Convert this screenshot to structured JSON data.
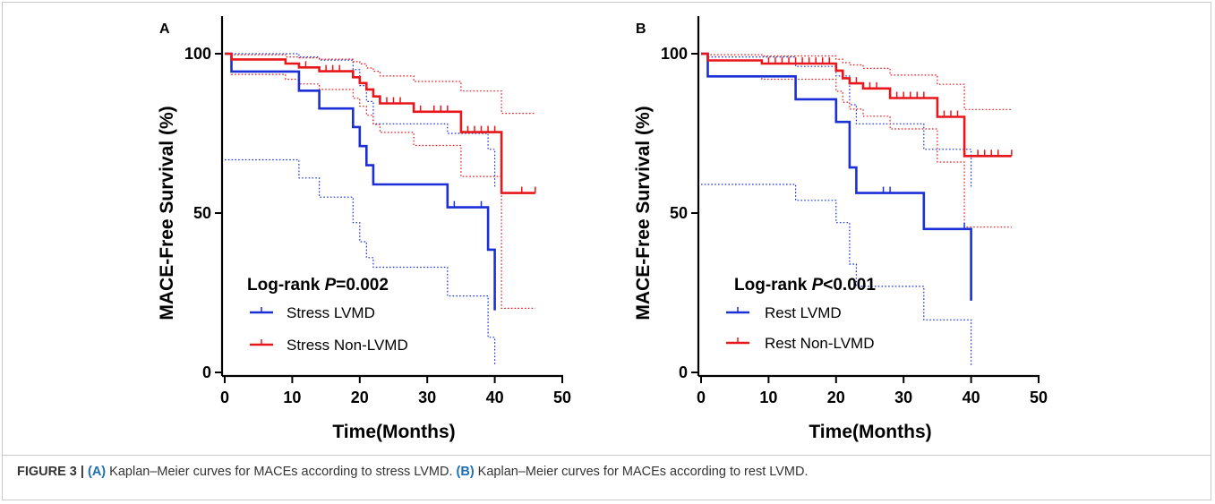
{
  "caption": {
    "prefix": "FIGURE 3 | ",
    "a_label": "(A)",
    "a_text": " Kaplan–Meier curves for MACEs according to stress LVMD. ",
    "b_label": "(B)",
    "b_text": " Kaplan–Meier curves for MACEs according to rest LVMD."
  },
  "colors": {
    "blue": "#1a2fd6",
    "red": "#e8161a",
    "axis": "#000000"
  },
  "chart_data": [
    {
      "type": "line",
      "panel": "A",
      "xlabel": "Time(Months)",
      "ylabel": "MACE-Free Survival (%)",
      "xlim": [
        0,
        50
      ],
      "ylim": [
        0,
        100
      ],
      "xticks": [
        0,
        10,
        20,
        30,
        40,
        50
      ],
      "yticks": [
        0,
        50,
        100
      ],
      "annotation": {
        "prefix": "Log-rank ",
        "p": "P",
        "rest": "=0.002"
      },
      "series": [
        {
          "name": "Stress LVMD",
          "color": "#1a2fd6",
          "steps": [
            [
              0,
              100
            ],
            [
              1,
              94.4
            ],
            [
              11,
              88.4
            ],
            [
              14,
              82.8
            ],
            [
              19,
              77
            ],
            [
              20,
              71
            ],
            [
              21,
              65
            ],
            [
              22,
              59
            ],
            [
              33,
              51.8
            ],
            [
              39,
              38.5
            ],
            [
              40,
              19.5
            ]
          ],
          "censors": [
            [
              34,
              51.8
            ],
            [
              38,
              51.8
            ]
          ],
          "ci_upper": [
            [
              0,
              100
            ],
            [
              1,
              100
            ],
            [
              11,
              99
            ],
            [
              14,
              98
            ],
            [
              19,
              95
            ],
            [
              20,
              90
            ],
            [
              21,
              85
            ],
            [
              22,
              78
            ],
            [
              33,
              75
            ],
            [
              39,
              70
            ],
            [
              40,
              58
            ]
          ],
          "ci_lower": [
            [
              0,
              66.7
            ],
            [
              11,
              61
            ],
            [
              14,
              55
            ],
            [
              19,
              47
            ],
            [
              20,
              41
            ],
            [
              21,
              36
            ],
            [
              22,
              33
            ],
            [
              33,
              24
            ],
            [
              39,
              11
            ],
            [
              40,
              2
            ]
          ]
        },
        {
          "name": "Stress Non-LVMD",
          "color": "#e8161a",
          "steps": [
            [
              0,
              100
            ],
            [
              1,
              98.2
            ],
            [
              9,
              96.9
            ],
            [
              11,
              95.7
            ],
            [
              14,
              94.5
            ],
            [
              19,
              92.6
            ],
            [
              20,
              90.8
            ],
            [
              21,
              88.8
            ],
            [
              22,
              86.6
            ],
            [
              23,
              84.4
            ],
            [
              28,
              81.8
            ],
            [
              35,
              75.4
            ],
            [
              41,
              56.3
            ],
            [
              46,
              56.3
            ]
          ],
          "censors": [
            [
              12,
              95.7
            ],
            [
              15,
              94.5
            ],
            [
              16,
              94.5
            ],
            [
              17,
              94.5
            ],
            [
              22,
              86.6
            ],
            [
              24,
              84.4
            ],
            [
              25,
              84.4
            ],
            [
              26,
              84.4
            ],
            [
              29,
              81.8
            ],
            [
              31,
              81.8
            ],
            [
              32,
              81.8
            ],
            [
              33,
              81.8
            ],
            [
              36,
              75.4
            ],
            [
              37,
              75.4
            ],
            [
              38,
              75.4
            ],
            [
              39,
              75.4
            ],
            [
              40,
              75.4
            ],
            [
              44,
              56.3
            ],
            [
              46,
              56.3
            ]
          ],
          "ci_upper": [
            [
              0,
              100
            ],
            [
              1,
              99.7
            ],
            [
              9,
              99
            ],
            [
              11,
              98.7
            ],
            [
              14,
              98.3
            ],
            [
              19,
              97.5
            ],
            [
              20,
              96.8
            ],
            [
              21,
              95.5
            ],
            [
              22,
              94.5
            ],
            [
              23,
              93
            ],
            [
              28,
              91.3
            ],
            [
              35,
              88.3
            ],
            [
              41,
              81.3
            ],
            [
              46,
              81.3
            ]
          ],
          "ci_lower": [
            [
              0,
              100
            ],
            [
              1,
              93.5
            ],
            [
              9,
              92
            ],
            [
              11,
              90.5
            ],
            [
              14,
              88.8
            ],
            [
              19,
              86
            ],
            [
              20,
              83.5
            ],
            [
              21,
              80.7
            ],
            [
              22,
              77.8
            ],
            [
              23,
              75.3
            ],
            [
              28,
              71.2
            ],
            [
              35,
              61.5
            ],
            [
              41,
              20.1
            ],
            [
              46,
              20.1
            ]
          ]
        }
      ]
    },
    {
      "type": "line",
      "panel": "B",
      "xlabel": "Time(Months)",
      "ylabel": "MACE-Free Survival (%)",
      "xlim": [
        0,
        50
      ],
      "ylim": [
        0,
        100
      ],
      "xticks": [
        0,
        10,
        20,
        30,
        40,
        50
      ],
      "yticks": [
        0,
        50,
        100
      ],
      "annotation": {
        "prefix": "Log-rank ",
        "p": "P",
        "rest": "<0.001"
      },
      "series": [
        {
          "name": "Rest LVMD",
          "color": "#1a2fd6",
          "steps": [
            [
              0,
              100
            ],
            [
              1,
              92.9
            ],
            [
              14,
              85.7
            ],
            [
              20,
              78.6
            ],
            [
              22,
              64.3
            ],
            [
              23,
              56.3
            ],
            [
              33,
              45
            ],
            [
              40,
              22.5
            ]
          ],
          "censors": [
            [
              27,
              56.3
            ],
            [
              28,
              56.3
            ],
            [
              39,
              45
            ]
          ],
          "ci_upper": [
            [
              0,
              100
            ],
            [
              1,
              99
            ],
            [
              14,
              96
            ],
            [
              20,
              93
            ],
            [
              22,
              84
            ],
            [
              23,
              78
            ],
            [
              33,
              70
            ],
            [
              40,
              58
            ]
          ],
          "ci_lower": [
            [
              0,
              59
            ],
            [
              14,
              54
            ],
            [
              20,
              47
            ],
            [
              22,
              34
            ],
            [
              23,
              27
            ],
            [
              33,
              16.5
            ],
            [
              40,
              2
            ]
          ]
        },
        {
          "name": "Rest Non-LVMD",
          "color": "#e8161a",
          "steps": [
            [
              0,
              100
            ],
            [
              1,
              97.9
            ],
            [
              9,
              96.9
            ],
            [
              20,
              94.7
            ],
            [
              21,
              92.3
            ],
            [
              22,
              90.7
            ],
            [
              24,
              89.1
            ],
            [
              28,
              86.1
            ],
            [
              35,
              80.2
            ],
            [
              39,
              67.9
            ],
            [
              46,
              67.9
            ]
          ],
          "censors": [
            [
              10,
              96.9
            ],
            [
              11,
              96.9
            ],
            [
              12,
              96.9
            ],
            [
              13,
              96.9
            ],
            [
              14,
              96.9
            ],
            [
              15,
              96.9
            ],
            [
              16,
              96.9
            ],
            [
              17,
              96.9
            ],
            [
              18,
              96.9
            ],
            [
              19,
              96.9
            ],
            [
              23,
              90.7
            ],
            [
              25,
              89.1
            ],
            [
              26,
              89.1
            ],
            [
              29,
              86.1
            ],
            [
              30,
              86.1
            ],
            [
              31,
              86.1
            ],
            [
              32,
              86.1
            ],
            [
              33,
              86.1
            ],
            [
              36,
              80.2
            ],
            [
              37,
              80.2
            ],
            [
              38,
              80.2
            ],
            [
              41,
              67.9
            ],
            [
              42,
              67.9
            ],
            [
              43,
              67.9
            ],
            [
              44,
              67.9
            ],
            [
              46,
              67.9
            ]
          ],
          "ci_upper": [
            [
              0,
              100
            ],
            [
              1,
              99.7
            ],
            [
              9,
              99.3
            ],
            [
              20,
              98.3
            ],
            [
              21,
              97.2
            ],
            [
              22,
              96.5
            ],
            [
              24,
              95.4
            ],
            [
              28,
              93.3
            ],
            [
              35,
              90.4
            ],
            [
              39,
              82.5
            ],
            [
              46,
              82.5
            ]
          ],
          "ci_lower": [
            [
              0,
              100
            ],
            [
              1,
              93
            ],
            [
              9,
              92
            ],
            [
              20,
              88.2
            ],
            [
              21,
              84.8
            ],
            [
              22,
              82.6
            ],
            [
              24,
              80.4
            ],
            [
              28,
              76.4
            ],
            [
              35,
              66
            ],
            [
              39,
              45.6
            ],
            [
              46,
              45.6
            ]
          ]
        }
      ]
    }
  ]
}
